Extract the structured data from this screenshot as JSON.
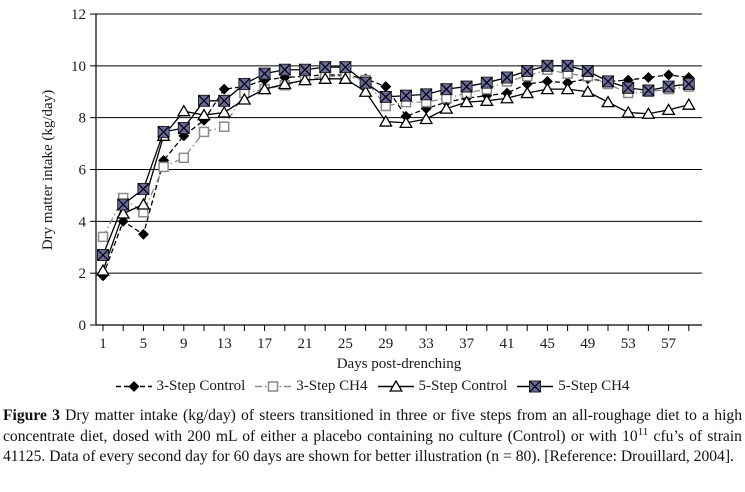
{
  "figure": {
    "caption": {
      "label": "Figure 3",
      "text_before_sup": " Dry matter intake (kg/day) of steers transitioned in three or five steps from an all-roughage diet to a high concentrate diet, dosed with 200 mL of either a placebo containing no culture (Control) or with 10",
      "superscript": "11",
      "text_after_sup": " cfu’s of strain 41125. Data of every second day for 60 days are shown for better illustration (n = 80). [Reference: Drouillard, 2004]."
    }
  },
  "chart_data": {
    "type": "line",
    "title": "",
    "xlabel": "Days post-drenching",
    "ylabel": "Dry matter intake (kg/day)",
    "ylim": [
      0,
      12
    ],
    "ytick_step": 2,
    "grid": true,
    "legend_position": "bottom",
    "x": [
      1,
      3,
      5,
      7,
      9,
      11,
      13,
      15,
      17,
      19,
      21,
      23,
      25,
      27,
      29,
      31,
      33,
      35,
      37,
      39,
      41,
      43,
      45,
      47,
      49,
      51,
      53,
      55,
      57,
      59
    ],
    "xticks_labeled": [
      1,
      5,
      9,
      13,
      17,
      21,
      25,
      29,
      33,
      37,
      41,
      45,
      49,
      53,
      57
    ],
    "series": [
      {
        "name": "3-Step Control",
        "marker": "filled-diamond",
        "line_style": "dashed",
        "color": "#000000",
        "marker_fill": "#000000",
        "values": [
          1.9,
          4.0,
          3.5,
          6.35,
          7.3,
          7.9,
          9.1,
          9.2,
          9.45,
          9.55,
          9.6,
          9.65,
          9.65,
          9.5,
          9.2,
          8.05,
          8.35,
          8.6,
          8.75,
          8.85,
          8.95,
          9.3,
          9.4,
          9.35,
          9.5,
          9.4,
          9.45,
          9.55,
          9.65,
          9.55
        ]
      },
      {
        "name": "3-Step CH4",
        "marker": "open-square",
        "line_style": "dash-dot",
        "color": "#8a8a8a",
        "marker_fill": "#ffffff",
        "values": [
          3.4,
          4.9,
          4.35,
          6.1,
          6.45,
          7.45,
          7.65,
          8.95,
          9.1,
          9.25,
          9.45,
          9.6,
          9.6,
          9.45,
          8.45,
          8.6,
          8.6,
          8.75,
          8.95,
          9.1,
          9.4,
          9.6,
          9.85,
          9.7,
          9.6,
          9.3,
          8.95,
          9.0,
          9.1,
          9.2
        ]
      },
      {
        "name": "5-Step Control",
        "marker": "open-triangle",
        "line_style": "solid",
        "color": "#000000",
        "marker_fill": "#ffffff",
        "values": [
          2.1,
          4.3,
          4.65,
          7.3,
          8.25,
          8.1,
          8.2,
          8.7,
          9.1,
          9.3,
          9.45,
          9.5,
          9.5,
          9.0,
          7.85,
          7.8,
          7.95,
          8.35,
          8.6,
          8.65,
          8.75,
          8.95,
          9.1,
          9.1,
          9.0,
          8.6,
          8.2,
          8.15,
          8.3,
          8.5
        ]
      },
      {
        "name": "5-Step CH4",
        "marker": "x-square",
        "line_style": "solid",
        "color": "#000000",
        "marker_fill": "#6a6a9e",
        "values": [
          2.7,
          4.65,
          5.25,
          7.45,
          7.6,
          8.65,
          8.65,
          9.3,
          9.7,
          9.85,
          9.85,
          9.95,
          9.95,
          9.35,
          8.8,
          8.85,
          8.9,
          9.1,
          9.2,
          9.35,
          9.55,
          9.8,
          10.0,
          10.0,
          9.8,
          9.4,
          9.15,
          9.05,
          9.2,
          9.3
        ]
      }
    ]
  }
}
